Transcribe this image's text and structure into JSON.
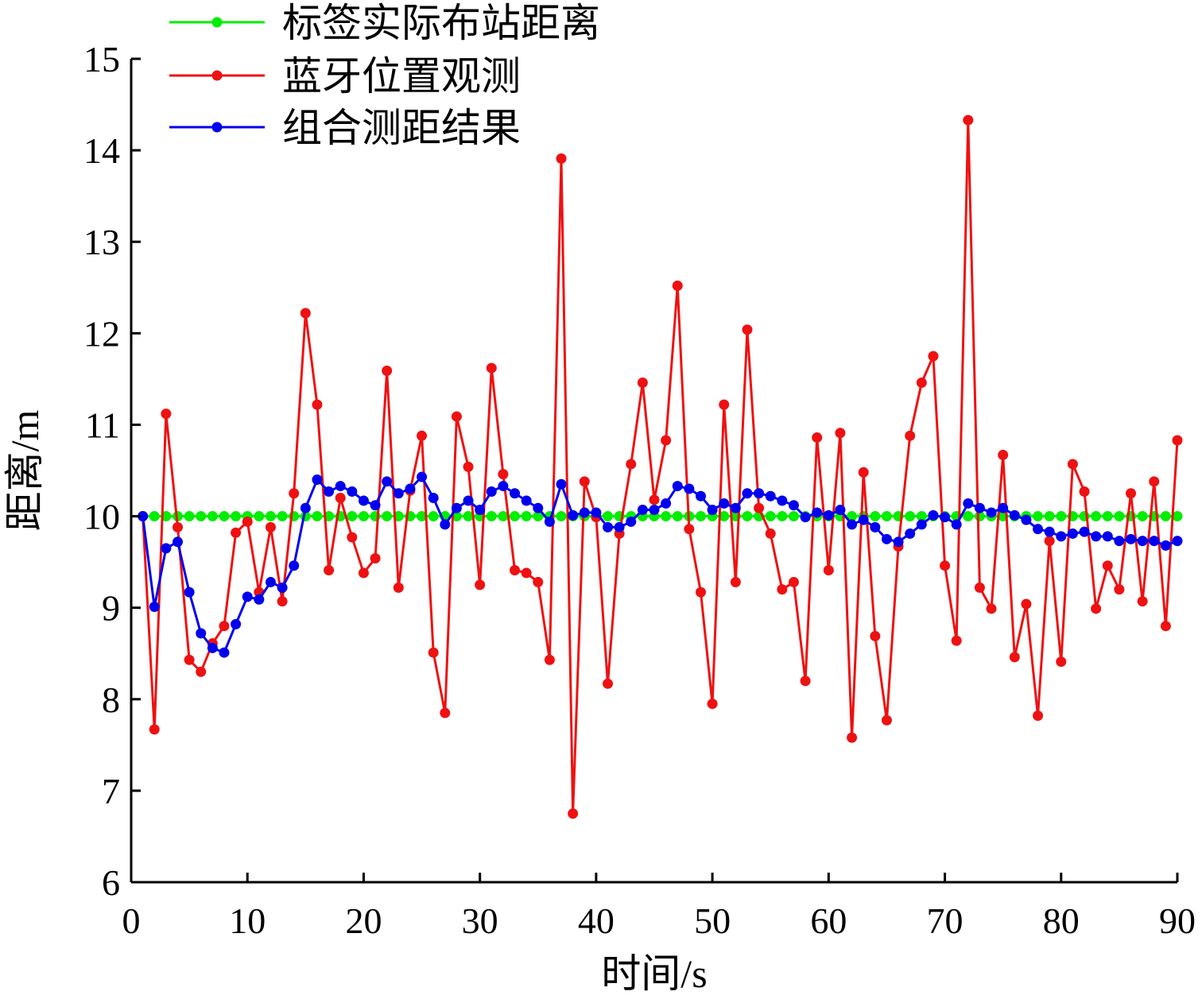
{
  "chart_data": {
    "type": "line",
    "title": "",
    "xlabel": "时间/s",
    "ylabel": "距离/m",
    "xlim": [
      0,
      90
    ],
    "ylim": [
      6,
      15
    ],
    "xticks": [
      "0",
      "10",
      "20",
      "30",
      "40",
      "50",
      "60",
      "70",
      "80",
      "90"
    ],
    "yticks": [
      "6",
      "7",
      "8",
      "9",
      "10",
      "11",
      "12",
      "13",
      "14",
      "15"
    ],
    "grid": false,
    "legend_position": "top-left",
    "x": [
      1,
      2,
      3,
      4,
      5,
      6,
      7,
      8,
      9,
      10,
      11,
      12,
      13,
      14,
      15,
      16,
      17,
      18,
      19,
      20,
      21,
      22,
      23,
      24,
      25,
      26,
      27,
      28,
      29,
      30,
      31,
      32,
      33,
      34,
      35,
      36,
      37,
      38,
      39,
      40,
      41,
      42,
      43,
      44,
      45,
      46,
      47,
      48,
      49,
      50,
      51,
      52,
      53,
      54,
      55,
      56,
      57,
      58,
      59,
      60,
      61,
      62,
      63,
      64,
      65,
      66,
      67,
      68,
      69,
      70,
      71,
      72,
      73,
      74,
      75,
      76,
      77,
      78,
      79,
      80,
      81,
      82,
      83,
      84,
      85,
      86,
      87,
      88,
      89,
      90
    ],
    "series": [
      {
        "name": "标签实际布站距离",
        "color": "#00ee00",
        "values": [
          10,
          10,
          10,
          10,
          10,
          10,
          10,
          10,
          10,
          10,
          10,
          10,
          10,
          10,
          10,
          10,
          10,
          10,
          10,
          10,
          10,
          10,
          10,
          10,
          10,
          10,
          10,
          10,
          10,
          10,
          10,
          10,
          10,
          10,
          10,
          10,
          10,
          10,
          10,
          10,
          10,
          10,
          10,
          10,
          10,
          10,
          10,
          10,
          10,
          10,
          10,
          10,
          10,
          10,
          10,
          10,
          10,
          10,
          10,
          10,
          10,
          10,
          10,
          10,
          10,
          10,
          10,
          10,
          10,
          10,
          10,
          10,
          10,
          10,
          10,
          10,
          10,
          10,
          10,
          10,
          10,
          10,
          10,
          10,
          10,
          10,
          10,
          10,
          10,
          10
        ]
      },
      {
        "name": "蓝牙位置观测",
        "color": "#ee1111",
        "values": [
          10.0,
          7.67,
          11.12,
          9.88,
          8.43,
          8.3,
          8.61,
          8.8,
          9.82,
          9.94,
          9.17,
          9.88,
          9.07,
          10.25,
          12.22,
          11.22,
          9.41,
          10.2,
          9.77,
          9.38,
          9.54,
          11.59,
          9.22,
          10.28,
          10.88,
          8.51,
          7.85,
          11.09,
          10.54,
          9.25,
          11.62,
          10.46,
          9.41,
          9.38,
          9.28,
          8.43,
          13.91,
          6.75,
          10.38,
          9.99,
          8.17,
          9.81,
          10.57,
          11.46,
          10.18,
          10.83,
          12.52,
          9.86,
          9.17,
          7.95,
          11.22,
          9.28,
          12.04,
          10.09,
          9.81,
          9.2,
          9.28,
          8.2,
          10.86,
          9.41,
          10.91,
          7.58,
          10.48,
          8.69,
          7.77,
          9.67,
          10.88,
          11.46,
          11.75,
          9.46,
          8.64,
          14.33,
          9.22,
          8.99,
          10.67,
          8.46,
          9.04,
          7.82,
          9.73,
          8.41,
          10.57,
          10.27,
          8.99,
          9.46,
          9.2,
          10.25,
          9.07,
          10.38,
          8.8,
          10.83
        ]
      },
      {
        "name": "组合测距结果",
        "color": "#0000ee",
        "values": [
          10.0,
          9.01,
          9.65,
          9.72,
          9.17,
          8.72,
          8.56,
          8.51,
          8.82,
          9.12,
          9.09,
          9.28,
          9.22,
          9.46,
          10.09,
          10.4,
          10.27,
          10.33,
          10.27,
          10.17,
          10.12,
          10.38,
          10.25,
          10.3,
          10.43,
          10.2,
          9.91,
          10.09,
          10.17,
          10.07,
          10.27,
          10.33,
          10.25,
          10.17,
          10.09,
          9.94,
          10.35,
          10.01,
          10.04,
          10.04,
          9.88,
          9.88,
          9.94,
          10.07,
          10.07,
          10.14,
          10.33,
          10.3,
          10.22,
          10.07,
          10.14,
          10.09,
          10.25,
          10.25,
          10.22,
          10.17,
          10.12,
          9.99,
          10.04,
          10.01,
          10.07,
          9.91,
          9.96,
          9.88,
          9.75,
          9.72,
          9.81,
          9.91,
          10.01,
          9.99,
          9.91,
          10.14,
          10.09,
          10.04,
          10.09,
          10.01,
          9.96,
          9.86,
          9.83,
          9.78,
          9.81,
          9.83,
          9.78,
          9.78,
          9.73,
          9.75,
          9.73,
          9.73,
          9.68,
          9.73
        ]
      }
    ]
  }
}
